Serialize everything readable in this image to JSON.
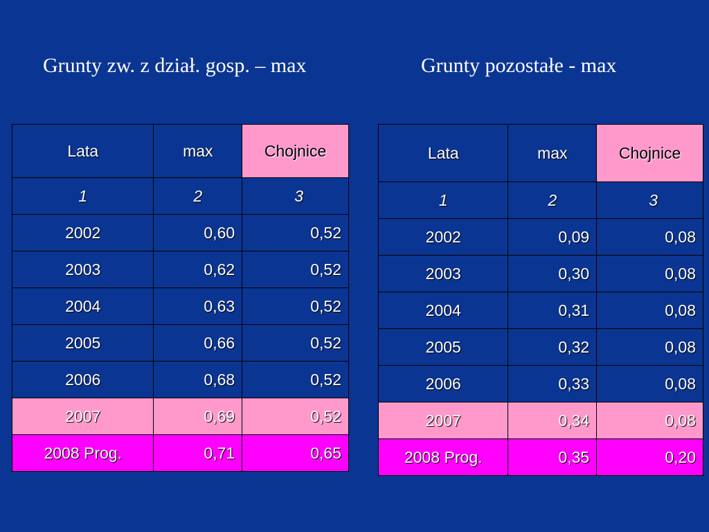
{
  "titles": {
    "left": "Grunty zw. z dział. gosp. – max",
    "right": "Grunty pozostałe - max"
  },
  "colors": {
    "background": "#0b3592",
    "header_highlight": "#ff99cc",
    "row_2007": "#ff99cc",
    "row_2008": "#ff00ff"
  },
  "left_table": {
    "headers": [
      "Lata",
      "max",
      "Chojnice"
    ],
    "numbers": [
      "1",
      "2",
      "3"
    ],
    "rows": [
      [
        "2002",
        "0,60",
        "0,52"
      ],
      [
        "2003",
        "0,62",
        "0,52"
      ],
      [
        "2004",
        "0,63",
        "0,52"
      ],
      [
        "2005",
        "0,66",
        "0,52"
      ],
      [
        "2006",
        "0,68",
        "0,52"
      ],
      [
        "2007",
        "0,69",
        "0,52"
      ],
      [
        "2008 Prog.",
        "0,71",
        "0,65"
      ]
    ]
  },
  "right_table": {
    "headers": [
      "Lata",
      "max",
      "Chojnice"
    ],
    "numbers": [
      "1",
      "2",
      "3"
    ],
    "rows": [
      [
        "2002",
        "0,09",
        "0,08"
      ],
      [
        "2003",
        "0,30",
        "0,08"
      ],
      [
        "2004",
        "0,31",
        "0,08"
      ],
      [
        "2005",
        "0,32",
        "0,08"
      ],
      [
        "2006",
        "0,33",
        "0,08"
      ],
      [
        "2007",
        "0,34",
        "0,08"
      ],
      [
        "2008 Prog.",
        "0,35",
        "0,20"
      ]
    ]
  }
}
